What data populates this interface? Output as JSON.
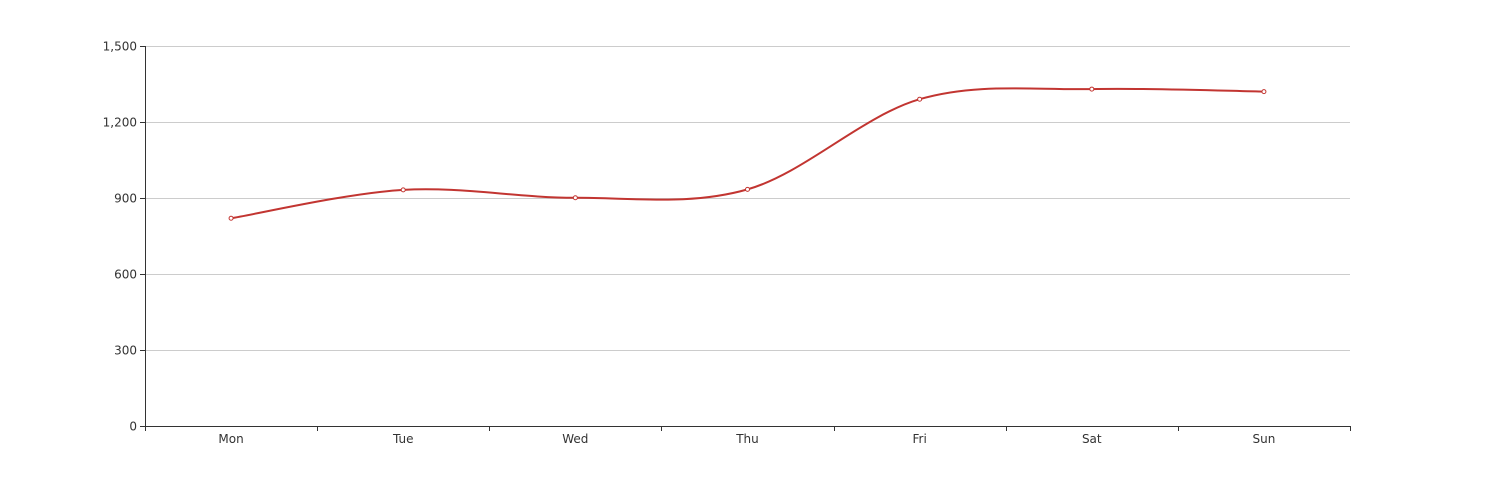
{
  "chart_data": {
    "type": "line",
    "smooth": true,
    "categories": [
      "Mon",
      "Tue",
      "Wed",
      "Thu",
      "Fri",
      "Sat",
      "Sun"
    ],
    "series": [
      {
        "values": [
          820,
          932,
          901,
          934,
          1290,
          1330,
          1320
        ],
        "color": "#c23531"
      }
    ],
    "ylim": [
      0,
      1500
    ],
    "yticks": [
      0,
      300,
      600,
      900,
      1200,
      1500
    ],
    "ytick_labels": [
      "0",
      "300",
      "600",
      "900",
      "1,200",
      "1,500"
    ],
    "grid": true,
    "title": "",
    "xlabel": "",
    "ylabel": ""
  },
  "colors": {
    "series": "#c23531",
    "grid": "#cccccc",
    "axis": "#333333",
    "text": "#333333"
  }
}
